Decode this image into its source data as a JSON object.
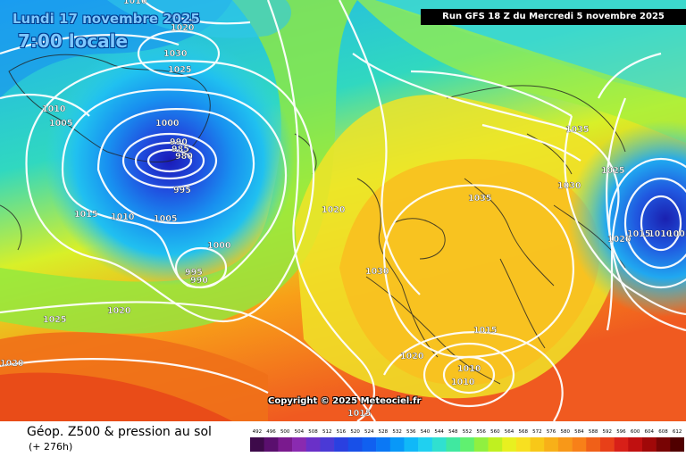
{
  "overlay": {
    "date": "Lundi 17 novembre 2025",
    "time": "7:00 locale",
    "run": "Run GFS 18 Z du Mercredi 5 novembre 2025",
    "copyright": "Copyright © 2025 Meteociel.fr"
  },
  "footer": {
    "title": "Géop. Z500 & pression au sol",
    "subtitle": "(+ 276h)"
  },
  "scale": {
    "ticks": [
      "492",
      "496",
      "500",
      "504",
      "508",
      "512",
      "516",
      "520",
      "524",
      "528",
      "532",
      "536",
      "540",
      "544",
      "548",
      "552",
      "556",
      "560",
      "564",
      "568",
      "572",
      "576",
      "580",
      "584",
      "588",
      "592",
      "596",
      "600",
      "604",
      "608",
      "612"
    ],
    "colors": [
      "#3d0a4a",
      "#5a0f6e",
      "#7a1a8e",
      "#8a2ab0",
      "#6a30c8",
      "#4a3ad6",
      "#2a40e0",
      "#1850e8",
      "#1060f0",
      "#0a78f5",
      "#0898f8",
      "#10b8f8",
      "#20d0f0",
      "#30e0d0",
      "#40e8a0",
      "#60f070",
      "#90f040",
      "#c0f020",
      "#e8f020",
      "#f8e020",
      "#f8c818",
      "#f8b018",
      "#f89818",
      "#f88018",
      "#f06018",
      "#e84018",
      "#d82018",
      "#c01010",
      "#a00808",
      "#780404",
      "#500000"
    ]
  },
  "isobar_labels": [
    "1010",
    "1020",
    "1030",
    "1025",
    "1010",
    "1005",
    "1000",
    "990",
    "985",
    "980",
    "995",
    "1015",
    "1010",
    "1005",
    "1000",
    "995",
    "990",
    "1025",
    "1020",
    "1020",
    "1030",
    "1035",
    "1035",
    "1025",
    "1030",
    "1020",
    "1015",
    "1010",
    "1005",
    "1015",
    "1020",
    "1010",
    "1010",
    "1015",
    "1020"
  ],
  "map": {
    "color_ocean_nw": "#1860e8",
    "color_low_center": "#2a20c8",
    "color_warm_sw": "#f86020",
    "color_europe": "#f8b818",
    "isobar_color": "#ffffff"
  }
}
